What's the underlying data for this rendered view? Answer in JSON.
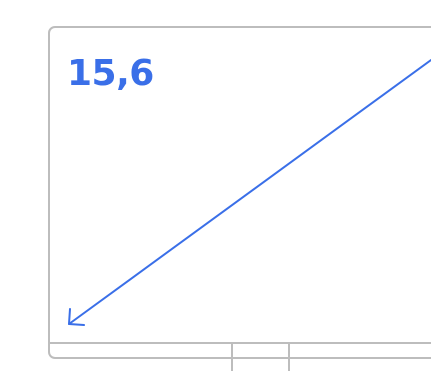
{
  "readout": {
    "value": "15,6"
  },
  "colors": {
    "accent": "#3a6fe8",
    "border": "#bdbdbd",
    "background": "#ffffff"
  },
  "icons": {
    "arrow": "diagonal-arrow-icon"
  }
}
